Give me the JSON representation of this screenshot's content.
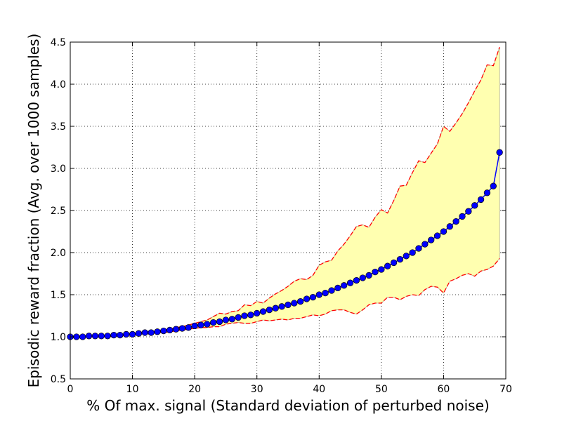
{
  "chart_data": {
    "type": "line",
    "title": "",
    "xlabel": "% Of max. signal (Standard deviation of perturbed noise)",
    "ylabel": "Episodic reward fraction (Avg. over 1000 samples)",
    "xlim": [
      0,
      70
    ],
    "ylim": [
      0.5,
      4.5
    ],
    "xticks": [
      0,
      10,
      20,
      30,
      40,
      50,
      60,
      70
    ],
    "yticks": [
      0.5,
      1.0,
      1.5,
      2.0,
      2.5,
      3.0,
      3.5,
      4.0,
      4.5
    ],
    "xtick_labels": [
      "0",
      "10",
      "20",
      "30",
      "40",
      "50",
      "60",
      "70"
    ],
    "ytick_labels": [
      "0.5",
      "1.0",
      "1.5",
      "2.0",
      "2.5",
      "3.0",
      "3.5",
      "4.0",
      "4.5"
    ],
    "grid": true,
    "x": [
      0,
      1,
      2,
      3,
      4,
      5,
      6,
      7,
      8,
      9,
      10,
      11,
      12,
      13,
      14,
      15,
      16,
      17,
      18,
      19,
      20,
      21,
      22,
      23,
      24,
      25,
      26,
      27,
      28,
      29,
      30,
      31,
      32,
      33,
      34,
      35,
      36,
      37,
      38,
      39,
      40,
      41,
      42,
      43,
      44,
      45,
      46,
      47,
      48,
      49,
      50,
      51,
      52,
      53,
      54,
      55,
      56,
      57,
      58,
      59,
      60,
      61,
      62,
      63,
      64,
      65,
      66,
      67,
      68,
      69
    ],
    "series": [
      {
        "values": [
          1.0,
          1.0,
          1.0,
          1.01,
          1.01,
          1.01,
          1.01,
          1.02,
          1.02,
          1.03,
          1.03,
          1.04,
          1.05,
          1.05,
          1.06,
          1.07,
          1.08,
          1.09,
          1.1,
          1.11,
          1.13,
          1.14,
          1.15,
          1.17,
          1.18,
          1.2,
          1.21,
          1.23,
          1.25,
          1.26,
          1.28,
          1.3,
          1.32,
          1.34,
          1.36,
          1.38,
          1.4,
          1.42,
          1.45,
          1.47,
          1.5,
          1.52,
          1.55,
          1.58,
          1.61,
          1.64,
          1.67,
          1.7,
          1.73,
          1.77,
          1.8,
          1.84,
          1.88,
          1.92,
          1.96,
          2.0,
          2.05,
          2.1,
          2.15,
          2.2,
          2.25,
          2.31,
          2.37,
          2.43,
          2.49,
          2.56,
          2.63,
          2.71,
          2.79,
          3.19
        ]
      },
      {
        "values": [
          1.0,
          1.0,
          1.0,
          1.01,
          1.01,
          1.01,
          1.02,
          1.02,
          1.03,
          1.03,
          1.04,
          1.05,
          1.06,
          1.06,
          1.07,
          1.08,
          1.09,
          1.11,
          1.12,
          1.14,
          1.16,
          1.18,
          1.2,
          1.24,
          1.28,
          1.27,
          1.3,
          1.31,
          1.38,
          1.37,
          1.42,
          1.4,
          1.46,
          1.51,
          1.55,
          1.6,
          1.66,
          1.69,
          1.68,
          1.73,
          1.85,
          1.89,
          1.91,
          2.02,
          2.1,
          2.2,
          2.31,
          2.33,
          2.3,
          2.42,
          2.51,
          2.47,
          2.62,
          2.79,
          2.8,
          2.95,
          3.09,
          3.07,
          3.18,
          3.29,
          3.5,
          3.44,
          3.54,
          3.65,
          3.78,
          3.92,
          4.05,
          4.23,
          4.22,
          4.44
        ]
      },
      {
        "values": [
          1.0,
          1.0,
          1.0,
          1.0,
          1.0,
          1.0,
          1.0,
          1.01,
          1.01,
          1.02,
          1.02,
          1.03,
          1.04,
          1.04,
          1.05,
          1.05,
          1.06,
          1.07,
          1.08,
          1.09,
          1.1,
          1.11,
          1.11,
          1.12,
          1.12,
          1.15,
          1.16,
          1.17,
          1.16,
          1.16,
          1.18,
          1.2,
          1.19,
          1.2,
          1.21,
          1.2,
          1.22,
          1.22,
          1.24,
          1.26,
          1.25,
          1.27,
          1.31,
          1.32,
          1.32,
          1.29,
          1.27,
          1.32,
          1.38,
          1.4,
          1.4,
          1.47,
          1.47,
          1.44,
          1.48,
          1.5,
          1.49,
          1.56,
          1.6,
          1.59,
          1.52,
          1.66,
          1.69,
          1.73,
          1.75,
          1.72,
          1.78,
          1.8,
          1.84,
          1.93
        ]
      }
    ],
    "colors": {
      "mean_line": "#0000ff",
      "marker_fill": "#0000ff",
      "marker_edge": "#000000",
      "bound_line": "#ff0000",
      "fill": "#ffffb0",
      "grid": "#000000"
    }
  }
}
